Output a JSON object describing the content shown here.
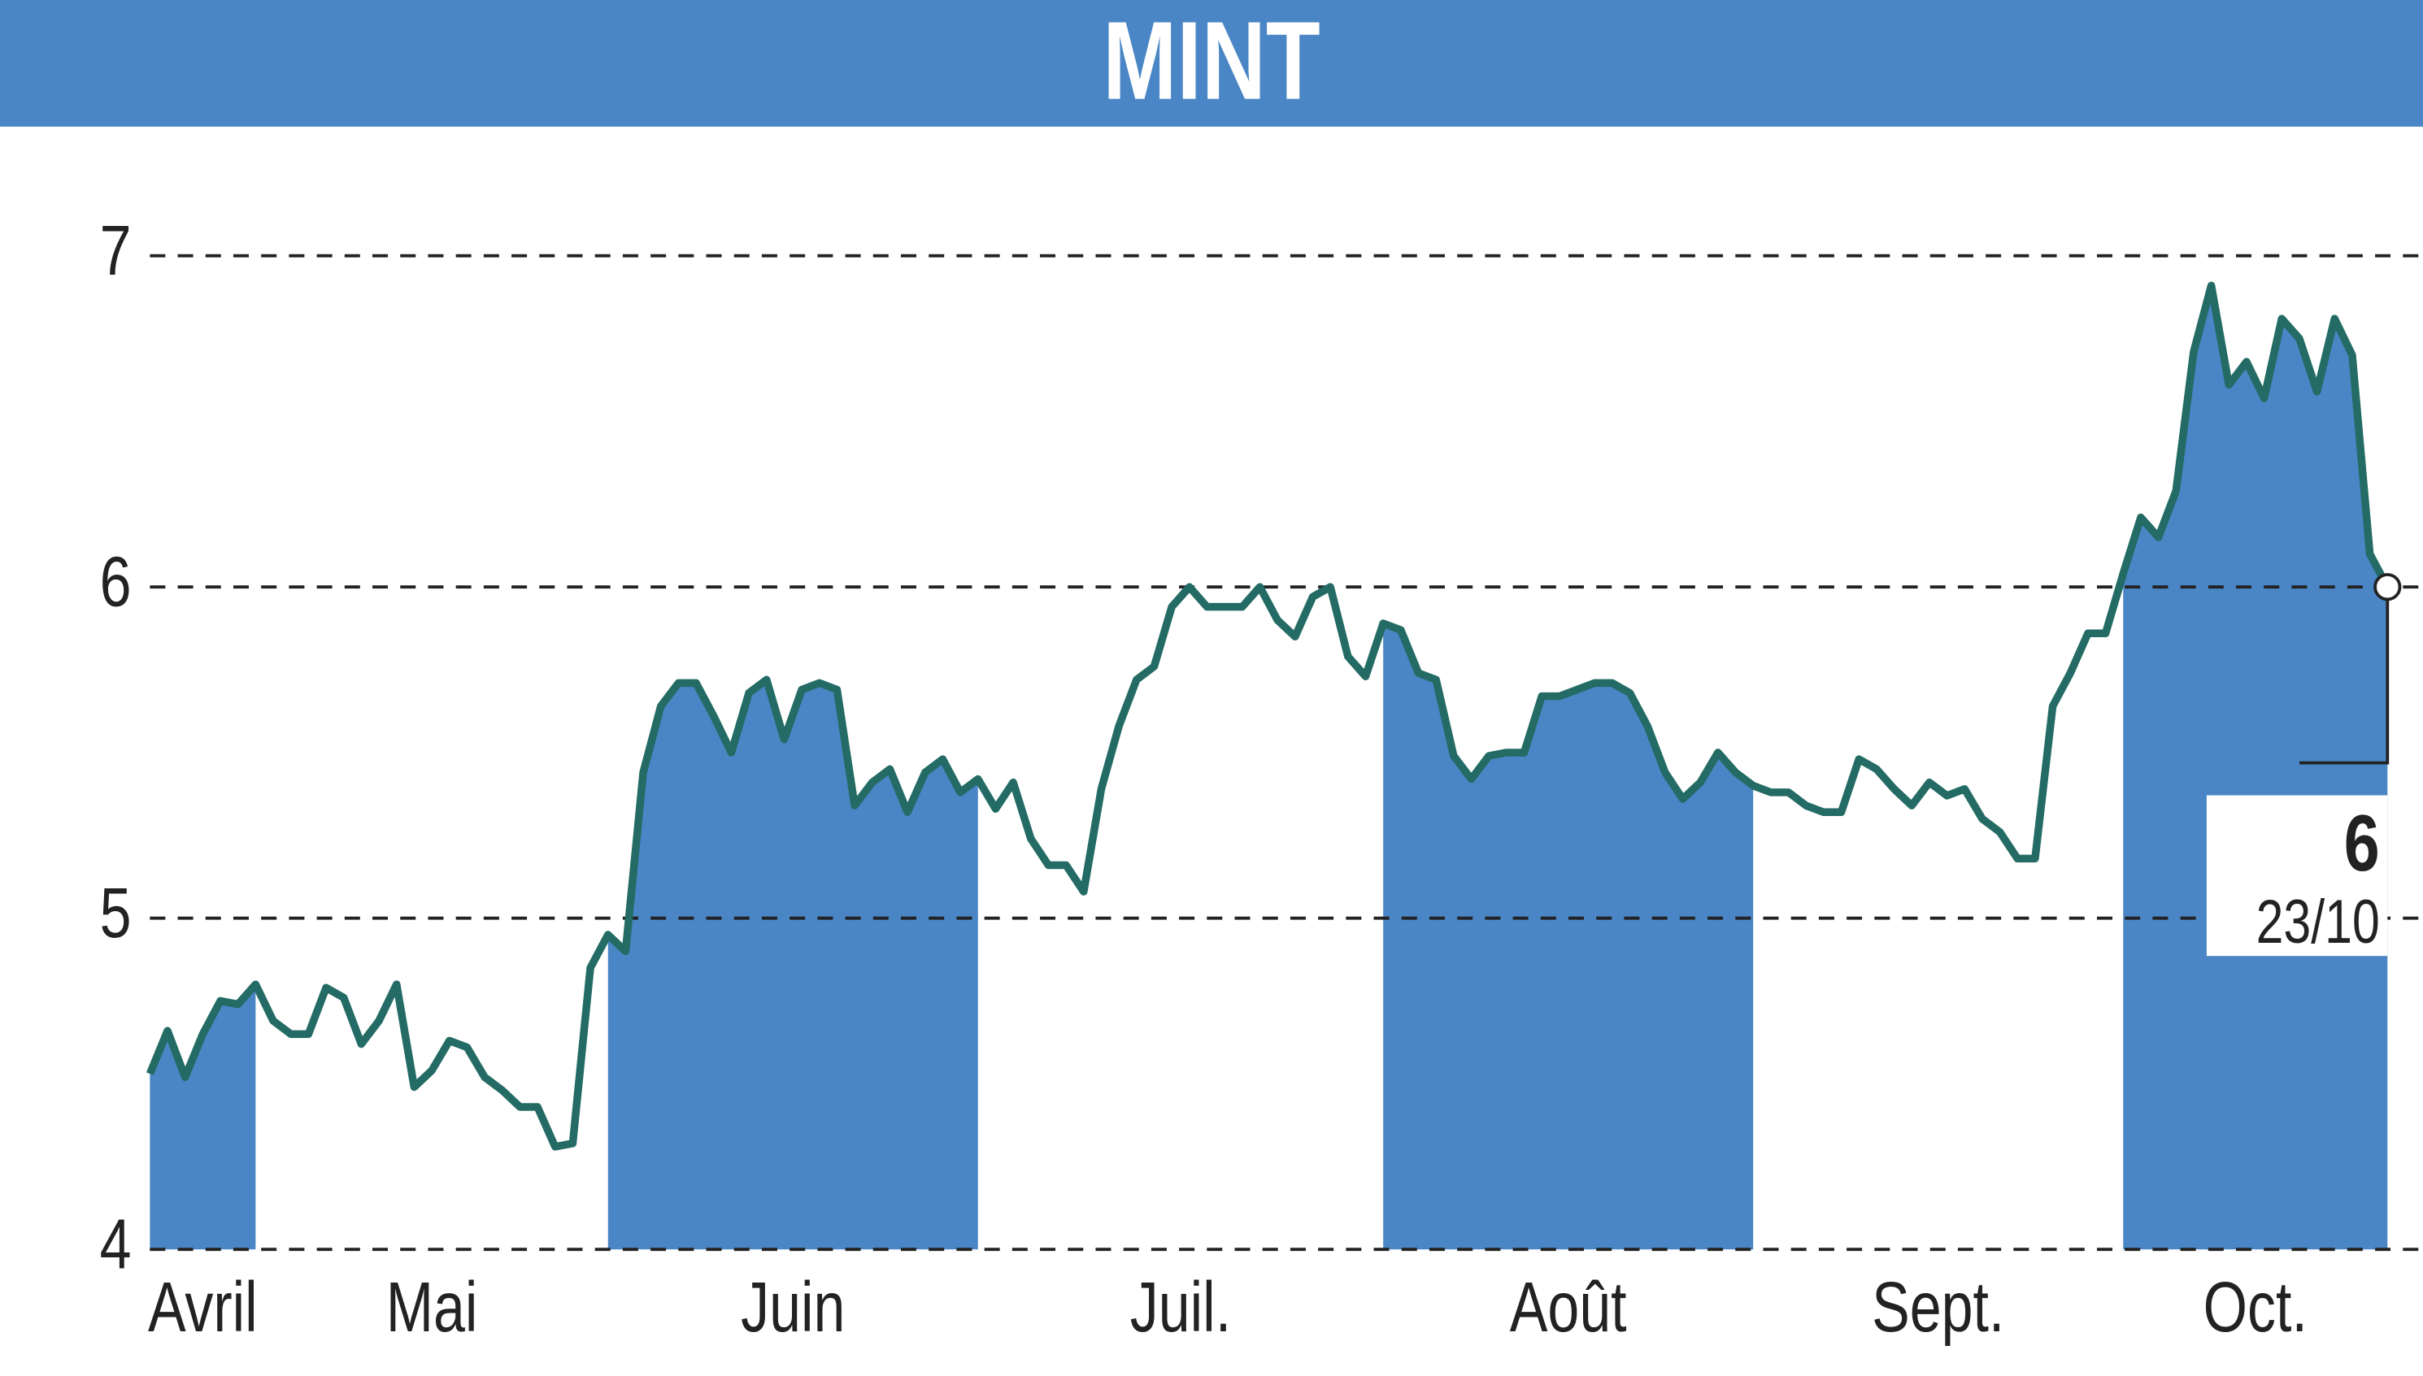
{
  "chart_data": {
    "type": "line",
    "title": "MINT",
    "xlim": [
      0,
      127
    ],
    "ylim": [
      4,
      7.25
    ],
    "yticks": [
      4,
      5,
      6,
      7
    ],
    "grid": true,
    "xticks": [
      {
        "value": 0,
        "label": "Avril"
      },
      {
        "value": 6,
        "label": "Mai"
      },
      {
        "value": 26,
        "label": "Juin"
      },
      {
        "value": 47,
        "label": "Juil."
      },
      {
        "value": 70,
        "label": "Août"
      },
      {
        "value": 91,
        "label": "Sept."
      },
      {
        "value": 112,
        "label": "Oct."
      }
    ],
    "series": [
      {
        "name": "MINT",
        "color": "#236b64",
        "fill": "#4a86c5",
        "values": [
          4.53,
          4.66,
          4.52,
          4.65,
          4.75,
          4.74,
          4.8,
          4.69,
          4.65,
          4.65,
          4.79,
          4.76,
          4.62,
          4.69,
          4.8,
          4.49,
          4.54,
          4.63,
          4.61,
          4.52,
          4.48,
          4.43,
          4.43,
          4.31,
          4.32,
          4.85,
          4.95,
          4.9,
          5.44,
          5.64,
          5.71,
          5.71,
          5.61,
          5.5,
          5.68,
          5.72,
          5.54,
          5.69,
          5.71,
          5.69,
          5.34,
          5.41,
          5.45,
          5.32,
          5.44,
          5.48,
          5.38,
          5.42,
          5.33,
          5.41,
          5.24,
          5.16,
          5.16,
          5.08,
          5.39,
          5.58,
          5.72,
          5.76,
          5.94,
          6.0,
          5.94,
          5.94,
          5.94,
          6.0,
          5.9,
          5.85,
          5.97,
          6.0,
          5.79,
          5.73,
          5.89,
          5.87,
          5.74,
          5.72,
          5.49,
          5.42,
          5.49,
          5.5,
          5.5,
          5.67,
          5.67,
          5.69,
          5.71,
          5.71,
          5.68,
          5.58,
          5.44,
          5.36,
          5.41,
          5.5,
          5.44,
          5.4,
          5.38,
          5.38,
          5.34,
          5.32,
          5.32,
          5.48,
          5.45,
          5.39,
          5.34,
          5.41,
          5.37,
          5.39,
          5.3,
          5.26,
          5.18,
          5.18,
          5.64,
          5.74,
          5.86,
          5.86,
          6.04,
          6.21,
          6.15,
          6.29,
          6.71,
          6.91,
          6.61,
          6.68,
          6.57,
          6.81,
          6.75,
          6.59,
          6.81,
          6.7,
          6.1,
          6.0
        ]
      }
    ],
    "last_label": {
      "value": 6,
      "date": "23/10"
    }
  }
}
